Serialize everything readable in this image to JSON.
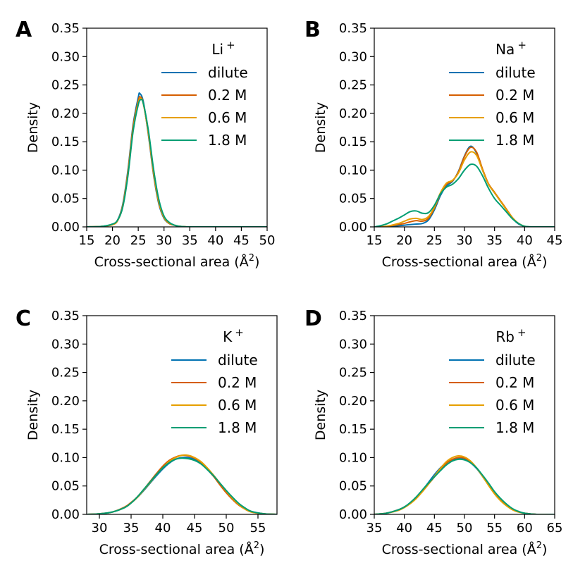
{
  "series_colors": {
    "dilute": "#0072b2",
    "0.2 M": "#d55e00",
    "0.6 M": "#e69f00",
    "1.8 M": "#009e73"
  },
  "chart_data": [
    {
      "type": "line",
      "panel_label": "A",
      "ion": "Li",
      "ion_charge": "+",
      "xlabel": "Cross-sectional area (Å",
      "xlabel_sup": "2",
      "xlabel_end": ")",
      "ylabel": "Density",
      "xlim": [
        15,
        50
      ],
      "ylim": [
        0,
        0.35
      ],
      "xticks": [
        "15",
        "20",
        "25",
        "30",
        "35",
        "40",
        "45",
        "50"
      ],
      "yticks": [
        "0.00",
        "0.05",
        "0.10",
        "0.15",
        "0.20",
        "0.25",
        "0.30",
        "0.35"
      ],
      "legend_position": "upper-right",
      "series": [
        {
          "name": "dilute",
          "x": [
            15,
            18,
            20,
            21,
            22,
            23,
            24,
            25,
            25.3,
            26,
            27,
            28,
            29,
            30,
            31,
            32,
            33,
            35,
            40,
            50
          ],
          "y": [
            0,
            0.001,
            0.004,
            0.012,
            0.04,
            0.1,
            0.18,
            0.228,
            0.235,
            0.22,
            0.16,
            0.09,
            0.04,
            0.015,
            0.006,
            0.003,
            0.001,
            0,
            0,
            0
          ]
        },
        {
          "name": "0.2 M",
          "x": [
            15,
            18,
            20,
            21,
            22,
            23,
            24,
            25,
            25.4,
            26,
            27,
            28,
            29,
            30,
            31,
            32,
            33,
            35,
            40,
            50
          ],
          "y": [
            0,
            0.001,
            0.004,
            0.011,
            0.038,
            0.097,
            0.176,
            0.222,
            0.229,
            0.217,
            0.162,
            0.092,
            0.042,
            0.016,
            0.006,
            0.003,
            0.001,
            0,
            0,
            0
          ]
        },
        {
          "name": "0.6 M",
          "x": [
            15,
            18,
            20,
            21,
            22,
            23,
            24,
            25,
            25.5,
            26,
            27,
            28,
            29,
            30,
            31,
            32,
            33,
            35,
            40,
            50
          ],
          "y": [
            0,
            0.001,
            0.004,
            0.011,
            0.036,
            0.093,
            0.171,
            0.218,
            0.226,
            0.216,
            0.164,
            0.095,
            0.044,
            0.017,
            0.007,
            0.003,
            0.001,
            0,
            0,
            0
          ]
        },
        {
          "name": "1.8 M",
          "x": [
            15,
            18,
            20,
            21,
            22,
            23,
            24,
            25,
            25.5,
            26,
            27,
            28,
            29,
            30,
            31,
            32,
            33,
            35,
            40,
            50
          ],
          "y": [
            0,
            0.001,
            0.005,
            0.012,
            0.035,
            0.09,
            0.168,
            0.215,
            0.224,
            0.217,
            0.168,
            0.1,
            0.048,
            0.019,
            0.008,
            0.003,
            0.001,
            0,
            0,
            0
          ]
        }
      ]
    },
    {
      "type": "line",
      "panel_label": "B",
      "ion": "Na",
      "ion_charge": "+",
      "xlabel": "Cross-sectional area (Å",
      "xlabel_sup": "2",
      "xlabel_end": ")",
      "ylabel": "Density",
      "xlim": [
        15,
        45
      ],
      "ylim": [
        0,
        0.35
      ],
      "xticks": [
        "15",
        "20",
        "25",
        "30",
        "35",
        "40",
        "45"
      ],
      "yticks": [
        "0.00",
        "0.05",
        "0.10",
        "0.15",
        "0.20",
        "0.25",
        "0.30",
        "0.35"
      ],
      "legend_position": "upper-right",
      "series": [
        {
          "name": "dilute",
          "x": [
            15,
            17,
            19,
            20,
            21,
            22,
            23,
            24,
            25,
            26,
            27,
            28,
            29,
            30,
            31,
            32,
            33,
            34,
            35,
            36,
            37,
            38,
            39,
            40,
            41,
            42,
            45
          ],
          "y": [
            0,
            0.0005,
            0.002,
            0.003,
            0.004,
            0.005,
            0.006,
            0.012,
            0.03,
            0.055,
            0.072,
            0.08,
            0.098,
            0.125,
            0.142,
            0.13,
            0.1,
            0.075,
            0.06,
            0.045,
            0.03,
            0.015,
            0.005,
            0.001,
            0,
            0,
            0
          ]
        },
        {
          "name": "0.2 M",
          "x": [
            15,
            17,
            19,
            20,
            21,
            22,
            23,
            24,
            25,
            26,
            27,
            28,
            29,
            30,
            31,
            32,
            33,
            34,
            35,
            36,
            37,
            38,
            39,
            40,
            41,
            42,
            45
          ],
          "y": [
            0,
            0.001,
            0.004,
            0.006,
            0.009,
            0.011,
            0.01,
            0.015,
            0.033,
            0.058,
            0.075,
            0.081,
            0.097,
            0.124,
            0.14,
            0.132,
            0.102,
            0.076,
            0.061,
            0.046,
            0.031,
            0.016,
            0.006,
            0.001,
            0,
            0,
            0
          ]
        },
        {
          "name": "0.6 M",
          "x": [
            15,
            17,
            19,
            20,
            21,
            22,
            23,
            24,
            25,
            26,
            27,
            28,
            29,
            30,
            31,
            32,
            33,
            34,
            35,
            36,
            37,
            38,
            39,
            40,
            41,
            42,
            45
          ],
          "y": [
            0,
            0.001,
            0.006,
            0.01,
            0.014,
            0.015,
            0.013,
            0.018,
            0.035,
            0.06,
            0.077,
            0.082,
            0.095,
            0.118,
            0.132,
            0.126,
            0.1,
            0.075,
            0.06,
            0.045,
            0.03,
            0.016,
            0.006,
            0.001,
            0,
            0,
            0
          ]
        },
        {
          "name": "1.8 M",
          "x": [
            15,
            16,
            17,
            18,
            19,
            20,
            21,
            22,
            23,
            24,
            25,
            26,
            27,
            28,
            29,
            30,
            31,
            32,
            33,
            34,
            35,
            36,
            37,
            38,
            39,
            40,
            42,
            45
          ],
          "y": [
            0,
            0.002,
            0.005,
            0.01,
            0.015,
            0.021,
            0.027,
            0.028,
            0.024,
            0.025,
            0.038,
            0.058,
            0.07,
            0.075,
            0.085,
            0.1,
            0.11,
            0.107,
            0.09,
            0.068,
            0.05,
            0.038,
            0.026,
            0.014,
            0.006,
            0.001,
            0,
            0
          ]
        }
      ]
    },
    {
      "type": "line",
      "panel_label": "C",
      "ion": "K",
      "ion_charge": "+",
      "xlabel": "Cross-sectional area (Å",
      "xlabel_sup": "2",
      "xlabel_end": ")",
      "ylabel": "Density",
      "xlim": [
        28,
        58
      ],
      "ylim": [
        0,
        0.35
      ],
      "xticks": [
        "30",
        "35",
        "40",
        "45",
        "50",
        "55"
      ],
      "yticks": [
        "0.00",
        "0.05",
        "0.10",
        "0.15",
        "0.20",
        "0.25",
        "0.30",
        "0.35"
      ],
      "legend_position": "upper-right",
      "series": [
        {
          "name": "dilute",
          "x": [
            28,
            30,
            32,
            34,
            35,
            36,
            37,
            38,
            39,
            40,
            41,
            42,
            43,
            44,
            45,
            46,
            47,
            48,
            49,
            50,
            51,
            52,
            53,
            54,
            56,
            58
          ],
          "y": [
            0,
            0.001,
            0.004,
            0.012,
            0.02,
            0.03,
            0.042,
            0.055,
            0.068,
            0.08,
            0.09,
            0.097,
            0.1,
            0.1,
            0.097,
            0.09,
            0.079,
            0.067,
            0.053,
            0.04,
            0.028,
            0.018,
            0.01,
            0.005,
            0.001,
            0
          ]
        },
        {
          "name": "0.2 M",
          "x": [
            28,
            30,
            32,
            34,
            35,
            36,
            37,
            38,
            39,
            40,
            41,
            42,
            43,
            44,
            45,
            46,
            47,
            48,
            49,
            50,
            51,
            52,
            53,
            54,
            56,
            58
          ],
          "y": [
            0,
            0.001,
            0.004,
            0.013,
            0.021,
            0.031,
            0.044,
            0.058,
            0.072,
            0.085,
            0.095,
            0.101,
            0.104,
            0.103,
            0.099,
            0.092,
            0.08,
            0.067,
            0.052,
            0.038,
            0.026,
            0.016,
            0.009,
            0.004,
            0.001,
            0
          ]
        },
        {
          "name": "0.6 M",
          "x": [
            28,
            30,
            32,
            34,
            35,
            36,
            37,
            38,
            39,
            40,
            41,
            42,
            43,
            44,
            45,
            46,
            47,
            48,
            49,
            50,
            51,
            52,
            53,
            54,
            56,
            58
          ],
          "y": [
            0,
            0.001,
            0.004,
            0.012,
            0.02,
            0.03,
            0.043,
            0.056,
            0.07,
            0.082,
            0.093,
            0.1,
            0.104,
            0.104,
            0.1,
            0.093,
            0.082,
            0.069,
            0.055,
            0.041,
            0.028,
            0.017,
            0.009,
            0.004,
            0.001,
            0
          ]
        },
        {
          "name": "1.8 M",
          "x": [
            28,
            30,
            32,
            34,
            35,
            36,
            37,
            38,
            39,
            40,
            41,
            42,
            43,
            44,
            45,
            46,
            47,
            48,
            49,
            50,
            51,
            52,
            53,
            54,
            56,
            58
          ],
          "y": [
            0,
            0.001,
            0.004,
            0.012,
            0.02,
            0.031,
            0.044,
            0.057,
            0.07,
            0.082,
            0.091,
            0.097,
            0.099,
            0.098,
            0.095,
            0.089,
            0.079,
            0.068,
            0.055,
            0.042,
            0.03,
            0.019,
            0.011,
            0.005,
            0.001,
            0
          ]
        }
      ]
    },
    {
      "type": "line",
      "panel_label": "D",
      "ion": "Rb",
      "ion_charge": "+",
      "xlabel": "Cross-sectional area (Å",
      "xlabel_sup": "2",
      "xlabel_end": ")",
      "ylabel": "Density",
      "xlim": [
        35,
        65
      ],
      "ylim": [
        0,
        0.35
      ],
      "xticks": [
        "35",
        "40",
        "45",
        "50",
        "55",
        "60",
        "65"
      ],
      "yticks": [
        "0.00",
        "0.05",
        "0.10",
        "0.15",
        "0.20",
        "0.25",
        "0.30",
        "0.35"
      ],
      "legend_position": "upper-right",
      "series": [
        {
          "name": "dilute",
          "x": [
            35,
            37,
            39,
            40,
            41,
            42,
            43,
            44,
            45,
            46,
            47,
            48,
            49,
            50,
            51,
            52,
            53,
            54,
            55,
            56,
            57,
            58,
            59,
            60,
            62,
            65
          ],
          "y": [
            0,
            0.002,
            0.008,
            0.013,
            0.02,
            0.03,
            0.042,
            0.056,
            0.07,
            0.082,
            0.091,
            0.096,
            0.098,
            0.097,
            0.091,
            0.081,
            0.067,
            0.052,
            0.038,
            0.026,
            0.016,
            0.009,
            0.005,
            0.002,
            0,
            0
          ]
        },
        {
          "name": "0.2 M",
          "x": [
            35,
            37,
            39,
            40,
            41,
            42,
            43,
            44,
            45,
            46,
            47,
            48,
            49,
            50,
            51,
            52,
            53,
            54,
            55,
            56,
            57,
            58,
            59,
            60,
            62,
            65
          ],
          "y": [
            0,
            0.002,
            0.008,
            0.013,
            0.02,
            0.029,
            0.04,
            0.053,
            0.066,
            0.079,
            0.09,
            0.097,
            0.1,
            0.099,
            0.093,
            0.082,
            0.068,
            0.053,
            0.038,
            0.026,
            0.016,
            0.009,
            0.005,
            0.002,
            0,
            0
          ]
        },
        {
          "name": "0.6 M",
          "x": [
            35,
            37,
            39,
            40,
            41,
            42,
            43,
            44,
            45,
            46,
            47,
            48,
            49,
            50,
            51,
            52,
            53,
            54,
            55,
            56,
            57,
            58,
            59,
            60,
            62,
            65
          ],
          "y": [
            0,
            0.002,
            0.007,
            0.012,
            0.019,
            0.028,
            0.04,
            0.053,
            0.067,
            0.081,
            0.093,
            0.1,
            0.103,
            0.101,
            0.094,
            0.082,
            0.067,
            0.051,
            0.036,
            0.024,
            0.015,
            0.008,
            0.004,
            0.002,
            0,
            0
          ]
        },
        {
          "name": "1.8 M",
          "x": [
            35,
            37,
            39,
            40,
            41,
            42,
            43,
            44,
            45,
            46,
            47,
            48,
            49,
            50,
            51,
            52,
            53,
            54,
            55,
            56,
            57,
            58,
            59,
            60,
            62,
            65
          ],
          "y": [
            0,
            0.002,
            0.008,
            0.013,
            0.021,
            0.031,
            0.043,
            0.055,
            0.066,
            0.077,
            0.087,
            0.094,
            0.097,
            0.096,
            0.091,
            0.082,
            0.069,
            0.055,
            0.04,
            0.028,
            0.018,
            0.01,
            0.005,
            0.002,
            0,
            0
          ]
        }
      ]
    }
  ]
}
